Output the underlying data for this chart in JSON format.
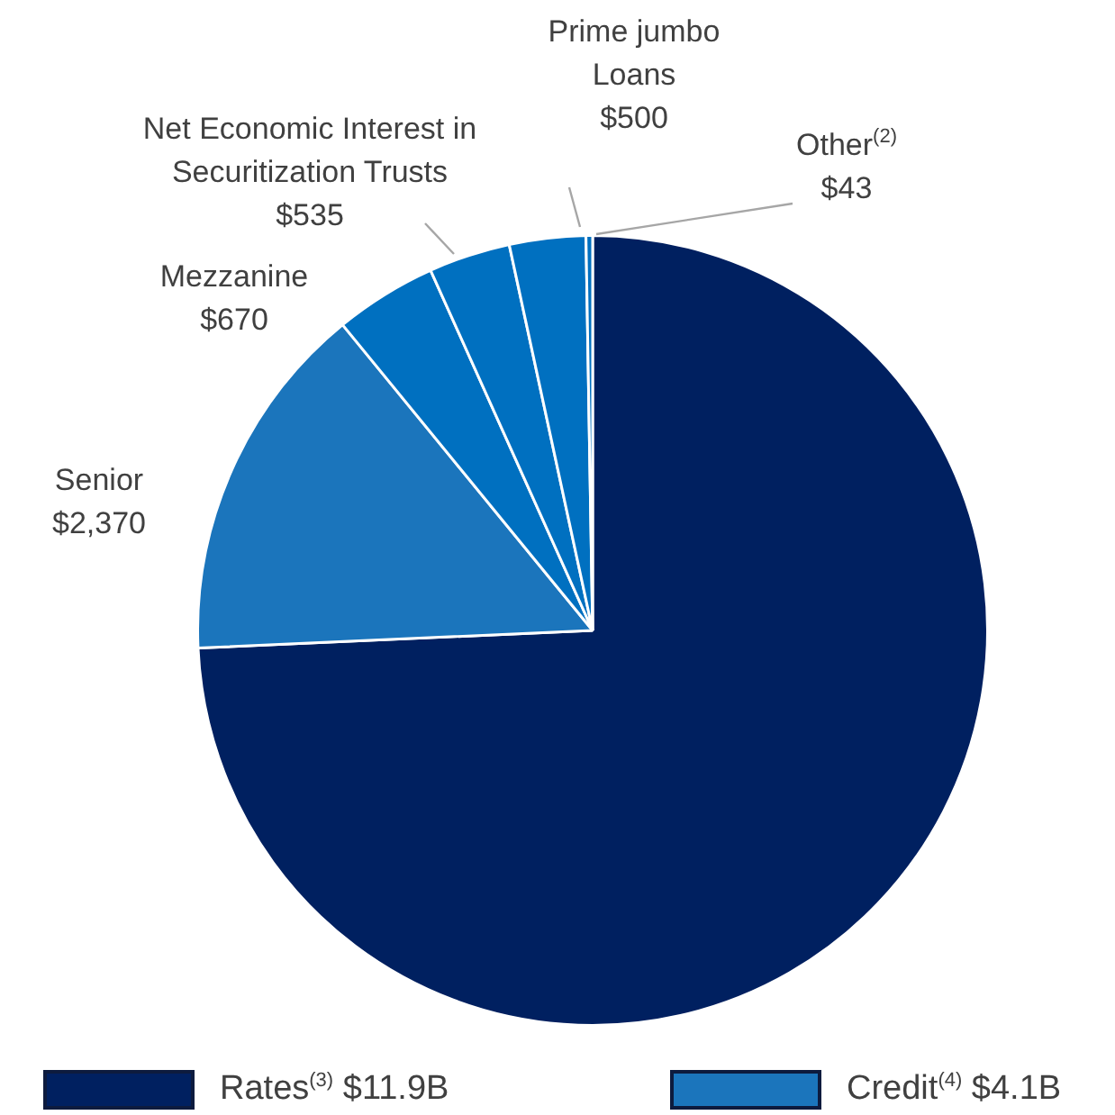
{
  "chart_data": {
    "type": "pie",
    "categories": [
      "Rates$^{(3)}$ $11.9B",
      "Senior",
      "Mezzanine",
      "Net Economic Interest in Securitization Trusts",
      "Prime jumbo Loans",
      "Other$^{(2)}$"
    ],
    "values": [
      11900,
      2370,
      670,
      535,
      500,
      43
    ],
    "colors": [
      "#002060",
      "#1b75bc",
      "#0070c0",
      "#0070c0",
      "#0070c0",
      "#0070c0"
    ],
    "value_labels": [
      null,
      "$2,370",
      "$670",
      "$535",
      "$500",
      "$43"
    ],
    "legend": "bottom",
    "annotations": [
      "Credit$^{(4)}$ $4.1B"
    ]
  }
}
